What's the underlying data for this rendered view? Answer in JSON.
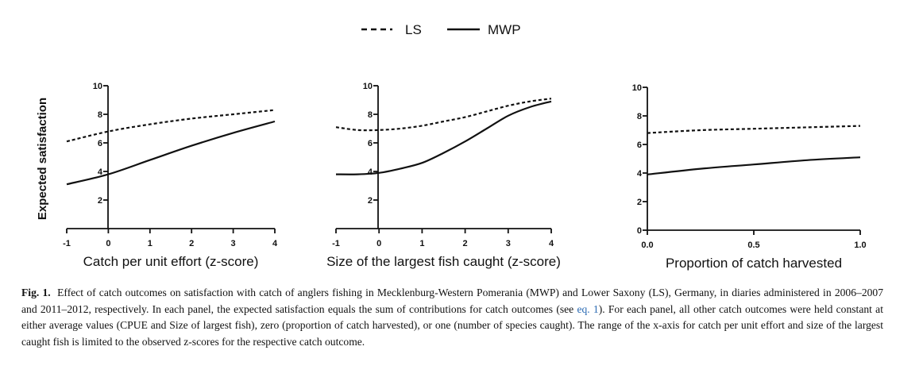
{
  "legend": [
    {
      "name": "LS",
      "style": "dashed"
    },
    {
      "name": "MWP",
      "style": "solid"
    }
  ],
  "chart_data": [
    {
      "type": "line",
      "xlabel": "Catch per unit effort (z-score)",
      "ylabel": "Expected satisfaction",
      "xlim": [
        -1,
        4
      ],
      "ylim": [
        0,
        10
      ],
      "xticks": [
        -1,
        0,
        1,
        2,
        3,
        4
      ],
      "xtick_labels": [
        "-1",
        "0",
        "1",
        "2",
        "3",
        "4"
      ],
      "yticks": [
        2,
        4,
        6,
        8,
        10
      ],
      "ytick_labels": [
        "2",
        "4",
        "6",
        "8",
        "10"
      ],
      "x": [
        -1,
        0,
        1,
        2,
        3,
        4
      ],
      "series": [
        {
          "name": "LS",
          "values": [
            6.1,
            6.8,
            7.3,
            7.7,
            8.0,
            8.3
          ]
        },
        {
          "name": "MWP",
          "values": [
            3.1,
            3.8,
            4.8,
            5.8,
            6.7,
            7.5
          ]
        }
      ]
    },
    {
      "type": "line",
      "xlabel": "Size of the largest fish caught (z-score)",
      "ylabel": "",
      "xlim": [
        -1,
        4
      ],
      "ylim": [
        0,
        10
      ],
      "xticks": [
        -1,
        0,
        1,
        2,
        3,
        4
      ],
      "xtick_labels": [
        "-1",
        "0",
        "1",
        "2",
        "3",
        "4"
      ],
      "yticks": [
        2,
        4,
        6,
        8,
        10
      ],
      "ytick_labels": [
        "2",
        "4",
        "6",
        "8",
        "10"
      ],
      "x": [
        -1,
        -0.5,
        0,
        0.5,
        1,
        1.5,
        2,
        2.5,
        3,
        3.5,
        4
      ],
      "series": [
        {
          "name": "LS",
          "values": [
            7.1,
            6.9,
            6.9,
            7.0,
            7.2,
            7.5,
            7.8,
            8.2,
            8.6,
            8.9,
            9.1
          ]
        },
        {
          "name": "MWP",
          "values": [
            3.8,
            3.8,
            3.9,
            4.2,
            4.6,
            5.3,
            6.1,
            7.0,
            7.9,
            8.5,
            8.9
          ]
        }
      ]
    },
    {
      "type": "line",
      "xlabel": "Proportion of catch harvested",
      "ylabel": "",
      "xlim": [
        0,
        1
      ],
      "ylim": [
        0,
        10
      ],
      "xticks": [
        0,
        0.5,
        1
      ],
      "xtick_labels": [
        "0.0",
        "0.5",
        "1.0"
      ],
      "yticks": [
        0,
        2,
        4,
        6,
        8,
        10
      ],
      "ytick_labels": [
        "0",
        "2",
        "4",
        "6",
        "8",
        "10"
      ],
      "x": [
        0,
        0.25,
        0.5,
        0.75,
        1
      ],
      "series": [
        {
          "name": "LS",
          "values": [
            6.8,
            7.0,
            7.1,
            7.2,
            7.3
          ]
        },
        {
          "name": "MWP",
          "values": [
            3.9,
            4.3,
            4.6,
            4.9,
            5.1
          ]
        }
      ]
    }
  ],
  "caption": {
    "label": "Fig. 1.",
    "text_before": "Effect of catch outcomes on satisfaction with catch of anglers fishing in Mecklenburg-Western Pomerania (MWP) and Lower Saxony (LS), Germany, in diaries administered in 2006–2007 and 2011–2012, respectively. In each panel, the expected satisfaction equals the sum of contributions for catch outcomes (see ",
    "link": "eq. 1",
    "text_after": "). For each panel, all other catch outcomes were held constant at either average values (CPUE and Size of largest fish), zero (proportion of catch harvested), or one (number of species caught). The range of the x-axis for catch per unit effort and size of the largest caught fish is limited to the observed z-scores for the respective catch outcome."
  }
}
